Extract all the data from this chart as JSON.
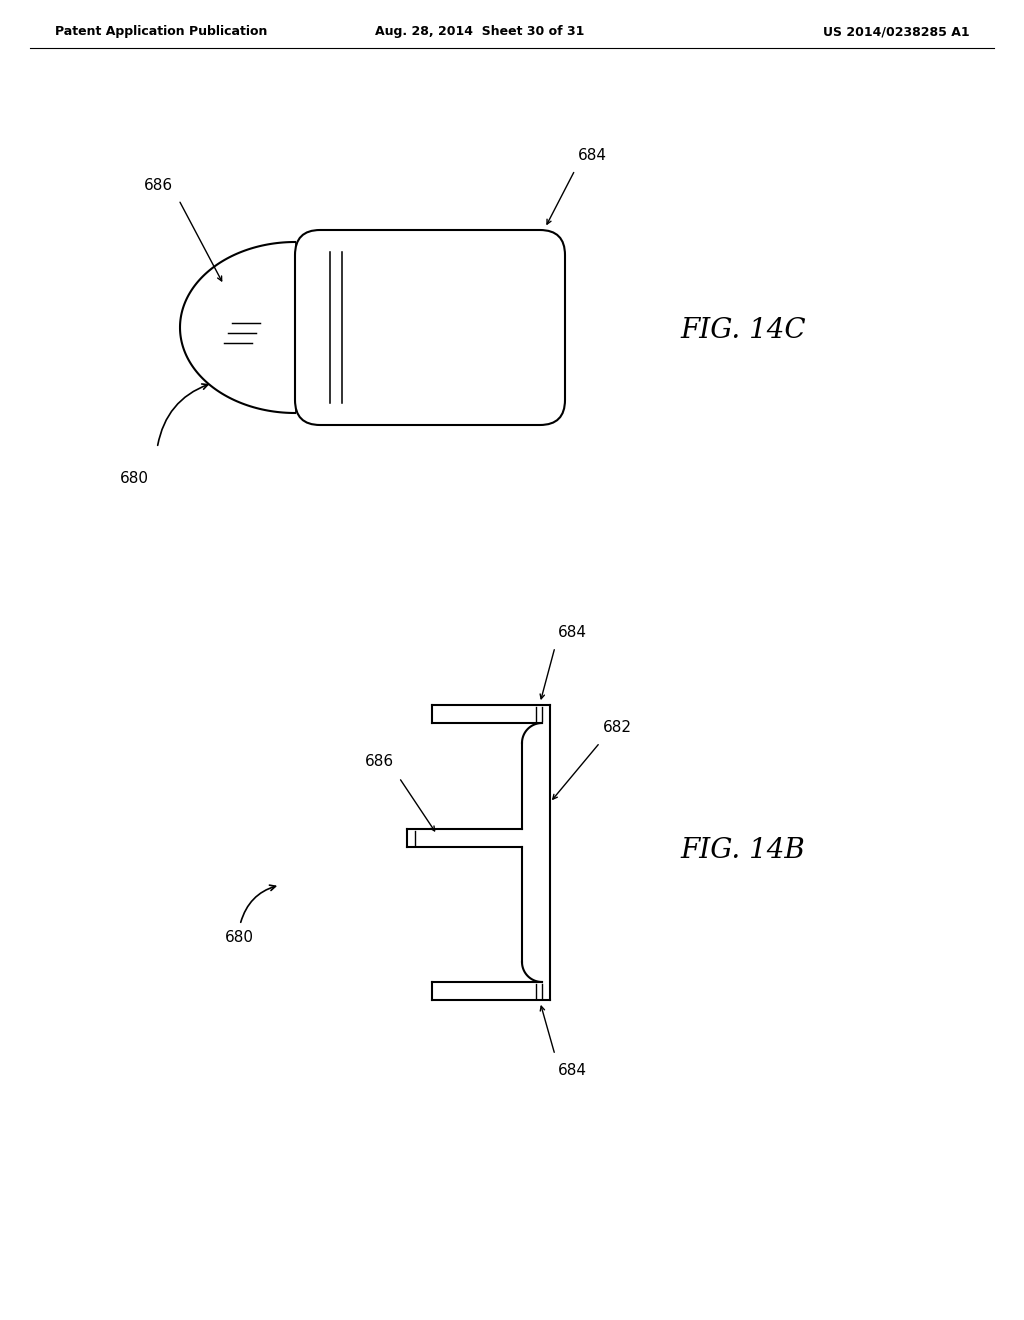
{
  "bg_color": "#ffffff",
  "line_color": "#000000",
  "header_left": "Patent Application Publication",
  "header_mid": "Aug. 28, 2014  Sheet 30 of 31",
  "header_right": "US 2014/0238285 A1",
  "fig14c_label": "FIG. 14C",
  "fig14b_label": "FIG. 14B",
  "label_680_top": "680",
  "label_684_top": "684",
  "label_686_top": "686",
  "label_680_bot": "680",
  "label_682_bot": "682",
  "label_684_bot_top": "684",
  "label_684_bot_bot": "684",
  "label_686_bot": "686"
}
